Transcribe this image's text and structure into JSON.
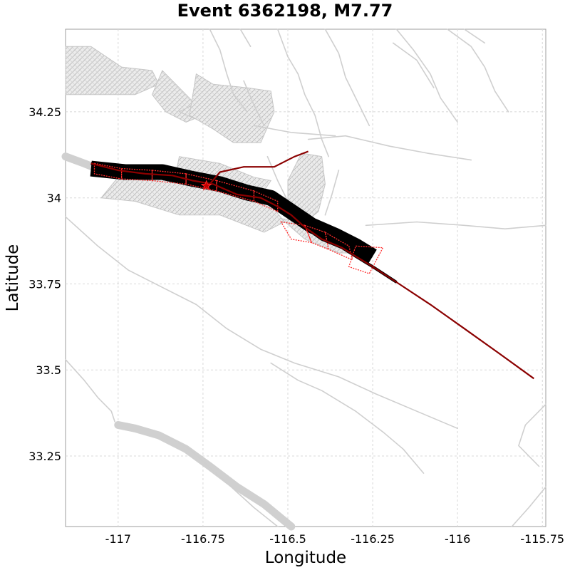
{
  "map": {
    "title": "Event 6362198, M7.77",
    "xlabel": "Longitude",
    "ylabel": "Latitude",
    "x_ticks": [
      "-117",
      "-116.75",
      "-116.5",
      "-116.25",
      "-116",
      "-115.75"
    ],
    "y_ticks": [
      "34.25",
      "34",
      "33.75",
      "33.5",
      "33.25"
    ]
  },
  "chart_data": {
    "type": "map",
    "title": "Event 6362198, M7.77",
    "xlabel": "Longitude",
    "ylabel": "Latitude",
    "xlim": [
      -117.155,
      -115.74
    ],
    "ylim": [
      33.045,
      34.49
    ],
    "x_ticks": [
      -117,
      -116.75,
      -116.5,
      -116.25,
      -116,
      -115.75
    ],
    "y_ticks": [
      34.25,
      34,
      33.75,
      33.5,
      33.25
    ],
    "grid": true,
    "colors": {
      "faults": "#cfcfcf",
      "rupture_fill": "#000000",
      "rupture_trace": "#8b0000",
      "subsections": "#ff2a2a"
    },
    "fault_traces": [
      [
        [
          -117.155,
          33.945
        ],
        [
          -117.06,
          33.86
        ],
        [
          -116.97,
          33.79
        ],
        [
          -116.87,
          33.74
        ],
        [
          -116.77,
          33.69
        ],
        [
          -116.68,
          33.62
        ],
        [
          -116.58,
          33.56
        ],
        [
          -116.48,
          33.52
        ],
        [
          -116.35,
          33.48
        ],
        [
          -116.24,
          33.43
        ],
        [
          -116.12,
          33.38
        ],
        [
          -116.0,
          33.33
        ]
      ],
      [
        [
          -117.155,
          33.53
        ],
        [
          -117.1,
          33.47
        ],
        [
          -117.06,
          33.42
        ],
        [
          -117.02,
          33.38
        ],
        [
          -117.01,
          33.35
        ]
      ],
      [
        [
          -116.86,
          33.31
        ],
        [
          -116.79,
          33.27
        ],
        [
          -116.7,
          33.19
        ],
        [
          -116.6,
          33.1
        ],
        [
          -116.53,
          33.045
        ]
      ],
      [
        [
          -116.55,
          33.52
        ],
        [
          -116.47,
          33.47
        ],
        [
          -116.4,
          33.44
        ],
        [
          -116.3,
          33.38
        ],
        [
          -116.22,
          33.32
        ],
        [
          -116.16,
          33.27
        ],
        [
          -116.1,
          33.2
        ]
      ],
      [
        [
          -115.74,
          33.4
        ],
        [
          -115.8,
          33.34
        ],
        [
          -115.82,
          33.28
        ],
        [
          -115.76,
          33.22
        ]
      ],
      [
        [
          -115.74,
          33.16
        ],
        [
          -115.79,
          33.1
        ],
        [
          -115.84,
          33.045
        ]
      ],
      [
        [
          -116.53,
          34.49
        ],
        [
          -116.5,
          34.41
        ],
        [
          -116.47,
          34.36
        ],
        [
          -116.45,
          34.3
        ],
        [
          -116.42,
          34.24
        ],
        [
          -116.4,
          34.17
        ],
        [
          -116.38,
          34.12
        ]
      ],
      [
        [
          -116.73,
          34.49
        ],
        [
          -116.7,
          34.43
        ],
        [
          -116.68,
          34.36
        ],
        [
          -116.66,
          34.3
        ],
        [
          -116.62,
          34.25
        ]
      ],
      [
        [
          -116.39,
          34.49
        ],
        [
          -116.35,
          34.42
        ],
        [
          -116.33,
          34.35
        ],
        [
          -116.3,
          34.29
        ],
        [
          -116.26,
          34.21
        ]
      ],
      [
        [
          -116.18,
          34.49
        ],
        [
          -116.13,
          34.43
        ],
        [
          -116.08,
          34.36
        ],
        [
          -116.05,
          34.29
        ],
        [
          -116.0,
          34.22
        ]
      ],
      [
        [
          -116.03,
          34.49
        ],
        [
          -115.96,
          34.44
        ],
        [
          -115.92,
          34.38
        ],
        [
          -115.89,
          34.31
        ],
        [
          -115.85,
          34.25
        ]
      ],
      [
        [
          -115.98,
          34.49
        ],
        [
          -115.92,
          34.45
        ]
      ],
      [
        [
          -116.44,
          34.17
        ],
        [
          -116.33,
          34.18
        ],
        [
          -116.2,
          34.15
        ],
        [
          -116.09,
          34.13
        ],
        [
          -115.96,
          34.11
        ]
      ],
      [
        [
          -116.6,
          34.21
        ],
        [
          -116.49,
          34.19
        ],
        [
          -116.36,
          34.18
        ]
      ],
      [
        [
          -116.56,
          34.12
        ],
        [
          -116.53,
          34.05
        ],
        [
          -116.5,
          33.99
        ],
        [
          -116.48,
          33.93
        ]
      ],
      [
        [
          -116.35,
          34.08
        ],
        [
          -116.37,
          34.01
        ],
        [
          -116.39,
          33.95
        ]
      ],
      [
        [
          -116.27,
          33.92
        ],
        [
          -116.12,
          33.93
        ],
        [
          -115.98,
          33.92
        ],
        [
          -115.86,
          33.91
        ],
        [
          -115.74,
          33.92
        ]
      ],
      [
        [
          -116.63,
          34.34
        ],
        [
          -116.6,
          34.27
        ],
        [
          -116.57,
          34.21
        ]
      ],
      [
        [
          -116.19,
          34.45
        ],
        [
          -116.12,
          34.4
        ],
        [
          -116.07,
          34.32
        ]
      ],
      [
        [
          -116.64,
          34.49
        ],
        [
          -116.61,
          34.44
        ]
      ]
    ],
    "thick_faults": [
      [
        [
          -117.155,
          34.12
        ],
        [
          -117.1,
          34.1
        ],
        [
          -117.05,
          34.08
        ],
        [
          -117.02,
          34.07
        ]
      ],
      [
        [
          -117.0,
          33.34
        ],
        [
          -116.95,
          33.33
        ],
        [
          -116.88,
          33.31
        ],
        [
          -116.8,
          33.27
        ],
        [
          -116.73,
          33.22
        ],
        [
          -116.65,
          33.16
        ],
        [
          -116.57,
          33.11
        ],
        [
          -116.49,
          33.045
        ]
      ]
    ],
    "mesh_patches": [
      [
        [
          -117.155,
          34.44
        ],
        [
          -117.08,
          34.44
        ],
        [
          -116.99,
          34.38
        ],
        [
          -116.9,
          34.37
        ],
        [
          -116.88,
          34.33
        ],
        [
          -116.95,
          34.3
        ],
        [
          -117.05,
          34.3
        ],
        [
          -117.155,
          34.3
        ]
      ],
      [
        [
          -116.87,
          34.37
        ],
        [
          -116.82,
          34.32
        ],
        [
          -116.78,
          34.28
        ],
        [
          -116.75,
          34.24
        ],
        [
          -116.8,
          34.22
        ],
        [
          -116.86,
          34.25
        ],
        [
          -116.9,
          34.3
        ]
      ],
      [
        [
          -116.82,
          34.25
        ],
        [
          -116.75,
          34.22
        ],
        [
          -116.68,
          34.2
        ],
        [
          -116.6,
          34.17
        ],
        [
          -116.58,
          34.23
        ],
        [
          -116.65,
          34.26
        ],
        [
          -116.74,
          34.29
        ]
      ],
      [
        [
          -116.77,
          34.36
        ],
        [
          -116.72,
          34.33
        ],
        [
          -116.62,
          34.32
        ],
        [
          -116.55,
          34.31
        ],
        [
          -116.54,
          34.25
        ],
        [
          -116.58,
          34.16
        ],
        [
          -116.66,
          34.16
        ],
        [
          -116.72,
          34.2
        ],
        [
          -116.79,
          34.24
        ]
      ],
      [
        [
          -117.0,
          34.06
        ],
        [
          -116.85,
          34.06
        ],
        [
          -116.7,
          34.04
        ],
        [
          -116.62,
          34.0
        ],
        [
          -116.55,
          33.98
        ],
        [
          -116.51,
          33.93
        ],
        [
          -116.57,
          33.9
        ],
        [
          -116.7,
          33.95
        ],
        [
          -116.82,
          33.95
        ],
        [
          -116.95,
          33.99
        ],
        [
          -117.05,
          34.0
        ]
      ],
      [
        [
          -116.82,
          34.12
        ],
        [
          -116.7,
          34.1
        ],
        [
          -116.6,
          34.06
        ],
        [
          -116.55,
          34.05
        ],
        [
          -116.57,
          34.02
        ],
        [
          -116.69,
          34.04
        ],
        [
          -116.83,
          34.07
        ]
      ],
      [
        [
          -116.46,
          34.13
        ],
        [
          -116.4,
          34.12
        ],
        [
          -116.39,
          34.04
        ],
        [
          -116.41,
          33.96
        ],
        [
          -116.46,
          33.92
        ],
        [
          -116.5,
          33.96
        ],
        [
          -116.5,
          34.05
        ]
      ],
      [
        [
          -116.52,
          33.94
        ],
        [
          -116.44,
          33.93
        ],
        [
          -116.36,
          33.91
        ],
        [
          -116.3,
          33.88
        ],
        [
          -116.26,
          33.84
        ],
        [
          -116.35,
          33.84
        ],
        [
          -116.45,
          33.88
        ]
      ]
    ],
    "rupture": {
      "trace": [
        [
          -117.08,
          34.1
        ],
        [
          -117.0,
          34.08
        ],
        [
          -116.92,
          34.07
        ],
        [
          -116.84,
          34.065
        ],
        [
          -116.78,
          34.05
        ],
        [
          -116.72,
          34.04
        ],
        [
          -116.65,
          34.01
        ],
        [
          -116.58,
          34.0
        ],
        [
          -116.53,
          33.975
        ],
        [
          -116.49,
          33.95
        ],
        [
          -116.45,
          33.915
        ],
        [
          -116.4,
          33.88
        ],
        [
          -116.34,
          33.855
        ],
        [
          -116.3,
          33.83
        ],
        [
          -116.25,
          33.8
        ],
        [
          -116.18,
          33.755
        ],
        [
          -116.08,
          33.69
        ],
        [
          -115.98,
          33.62
        ],
        [
          -115.88,
          33.55
        ],
        [
          -115.775,
          33.475
        ]
      ],
      "branch_trace": [
        [
          -116.73,
          34.04
        ],
        [
          -116.7,
          34.075
        ],
        [
          -116.63,
          34.09
        ],
        [
          -116.54,
          34.09
        ],
        [
          -116.48,
          34.12
        ],
        [
          -116.44,
          34.135
        ]
      ],
      "outline_pos": [
        [
          -117.08,
          34.085
        ],
        [
          -116.98,
          34.075
        ],
        [
          -116.87,
          34.075
        ],
        [
          -116.78,
          34.055
        ],
        [
          -116.7,
          34.04
        ],
        [
          -116.62,
          34.015
        ],
        [
          -116.55,
          34.0
        ],
        [
          -116.49,
          33.96
        ],
        [
          -116.43,
          33.92
        ],
        [
          -116.36,
          33.89
        ],
        [
          -116.3,
          33.86
        ],
        [
          -116.25,
          33.83
        ]
      ],
      "subsections": [
        [
          [
            -117.07,
            34.1
          ],
          [
            -116.99,
            34.085
          ],
          [
            -116.99,
            34.055
          ],
          [
            -117.07,
            34.07
          ]
        ],
        [
          [
            -116.99,
            34.085
          ],
          [
            -116.9,
            34.08
          ],
          [
            -116.9,
            34.05
          ],
          [
            -116.99,
            34.055
          ]
        ],
        [
          [
            -116.9,
            34.08
          ],
          [
            -116.8,
            34.07
          ],
          [
            -116.8,
            34.04
          ],
          [
            -116.9,
            34.05
          ]
        ],
        [
          [
            -116.8,
            34.07
          ],
          [
            -116.71,
            34.05
          ],
          [
            -116.71,
            34.02
          ],
          [
            -116.8,
            34.04
          ]
        ],
        [
          [
            -116.71,
            34.05
          ],
          [
            -116.6,
            34.02
          ],
          [
            -116.6,
            33.99
          ],
          [
            -116.71,
            34.02
          ]
        ],
        [
          [
            -116.6,
            34.02
          ],
          [
            -116.53,
            33.99
          ],
          [
            -116.53,
            33.96
          ],
          [
            -116.6,
            33.99
          ]
        ],
        [
          [
            -116.52,
            33.93
          ],
          [
            -116.45,
            33.92
          ],
          [
            -116.43,
            33.87
          ],
          [
            -116.49,
            33.88
          ]
        ],
        [
          [
            -116.45,
            33.92
          ],
          [
            -116.39,
            33.9
          ],
          [
            -116.38,
            33.85
          ],
          [
            -116.43,
            33.87
          ]
        ],
        [
          [
            -116.39,
            33.9
          ],
          [
            -116.32,
            33.86
          ],
          [
            -116.31,
            33.82
          ],
          [
            -116.38,
            33.85
          ]
        ],
        [
          [
            -116.3,
            33.86
          ],
          [
            -116.22,
            33.855
          ],
          [
            -116.26,
            33.78
          ],
          [
            -116.32,
            33.8
          ]
        ]
      ],
      "hypocenter": [
        -116.74,
        34.035
      ]
    }
  }
}
